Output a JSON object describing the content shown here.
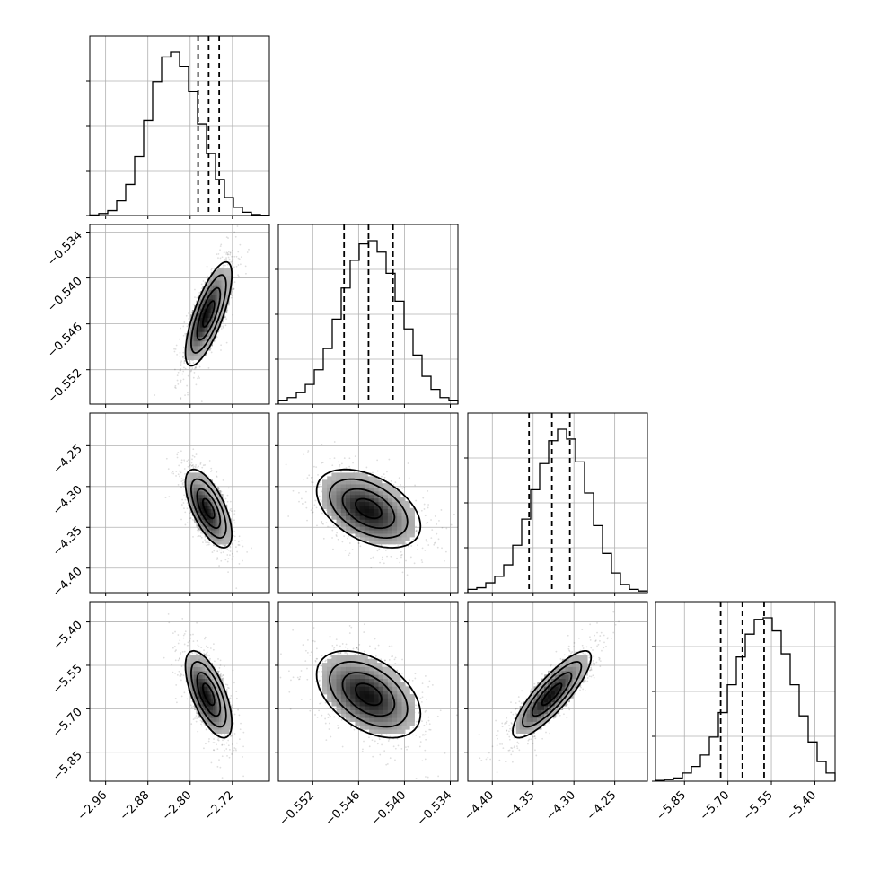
{
  "chart_data": {
    "type": "corner",
    "grid": true,
    "parameters": [
      {
        "range": [
          -2.99,
          -2.65
        ],
        "ticks": [
          -2.96,
          -2.88,
          -2.8,
          -2.72
        ],
        "tick_labels": [
          "−2.96",
          "−2.88",
          "−2.80",
          "−2.72"
        ],
        "median": -2.765,
        "q16": -2.785,
        "q84": -2.745,
        "sigma": 0.022
      },
      {
        "range": [
          -0.5565,
          -0.533
        ],
        "ticks": [
          -0.552,
          -0.546,
          -0.54,
          -0.534
        ],
        "tick_labels": [
          "−0.552",
          "−0.546",
          "−0.540",
          "−0.534"
        ],
        "median": -0.5447,
        "q16": -0.5479,
        "q84": -0.5415,
        "sigma": 0.0034
      },
      {
        "range": [
          -4.43,
          -4.21
        ],
        "ticks": [
          -4.4,
          -4.35,
          -4.3,
          -4.25
        ],
        "tick_labels": [
          "−4.40",
          "−4.35",
          "−4.30",
          "−4.25"
        ],
        "median": -4.327,
        "q16": -4.355,
        "q84": -4.305,
        "sigma": 0.024
      },
      {
        "range": [
          -5.95,
          -5.33
        ],
        "ticks": [
          -5.85,
          -5.7,
          -5.55,
          -5.4
        ],
        "tick_labels": [
          "−5.85",
          "−5.70",
          "−5.55",
          "−5.40"
        ],
        "median": -5.65,
        "q16": -5.725,
        "q84": -5.575,
        "sigma": 0.075
      }
    ],
    "correlations": {
      "1-0": 0.75,
      "2-0": -0.65,
      "2-1": -0.45,
      "3-0": -0.65,
      "3-1": -0.45,
      "3-2": 0.85
    },
    "histograms": [
      [
        0.003,
        0.012,
        0.03,
        0.09,
        0.19,
        0.36,
        0.58,
        0.82,
        0.97,
        1.0,
        0.91,
        0.76,
        0.56,
        0.38,
        0.22,
        0.11,
        0.05,
        0.02,
        0.006,
        0.002
      ],
      [
        0.02,
        0.04,
        0.07,
        0.12,
        0.21,
        0.34,
        0.52,
        0.71,
        0.88,
        0.98,
        1.0,
        0.93,
        0.8,
        0.63,
        0.46,
        0.3,
        0.17,
        0.09,
        0.04,
        0.02
      ],
      [
        0.02,
        0.03,
        0.06,
        0.1,
        0.17,
        0.29,
        0.45,
        0.63,
        0.79,
        0.93,
        1.0,
        0.94,
        0.8,
        0.61,
        0.41,
        0.24,
        0.12,
        0.05,
        0.02,
        0.01
      ],
      [
        0.005,
        0.01,
        0.02,
        0.05,
        0.09,
        0.16,
        0.27,
        0.42,
        0.59,
        0.76,
        0.9,
        0.99,
        1.0,
        0.92,
        0.78,
        0.59,
        0.4,
        0.24,
        0.12,
        0.05
      ]
    ],
    "contour_levels_sigma": [
      0.5,
      1.0,
      1.5,
      2.0
    ]
  }
}
